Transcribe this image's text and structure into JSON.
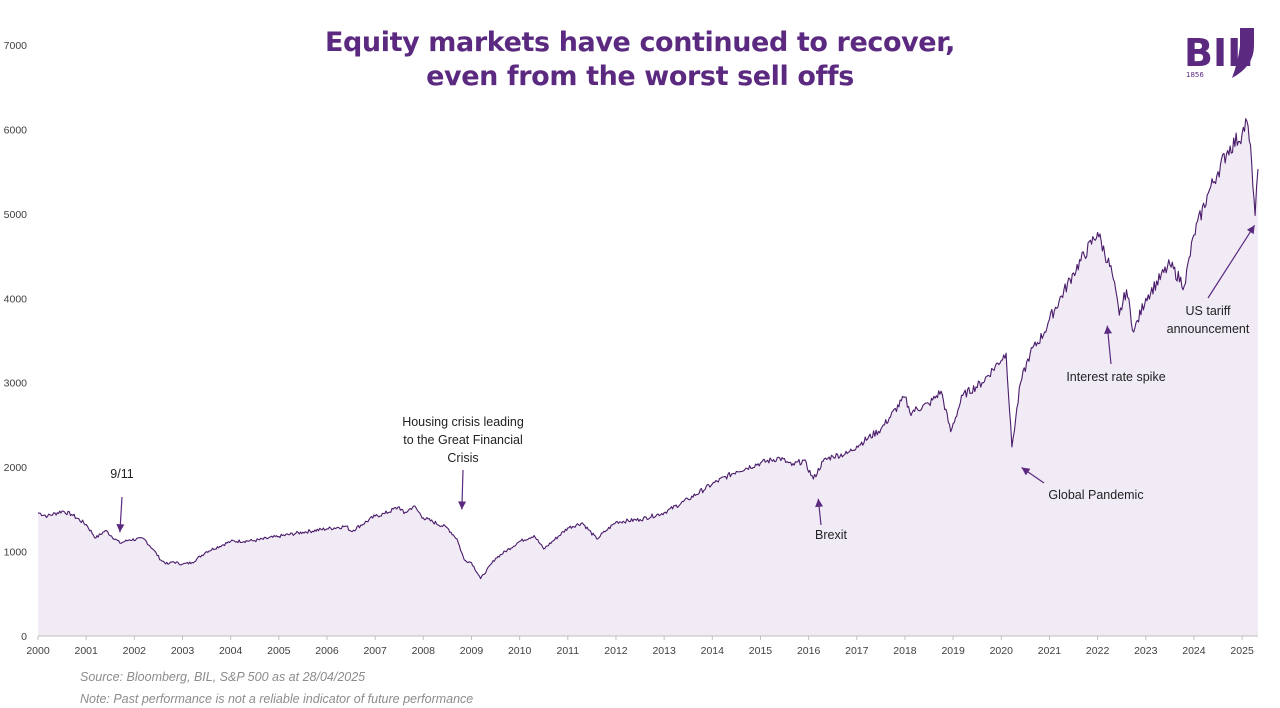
{
  "title": {
    "line1": "Equity markets have continued to recover,",
    "line2": "even from the worst sell offs"
  },
  "logo": {
    "text": "BIL",
    "year": "1856",
    "color": "#5b2a80"
  },
  "footer": {
    "source": "Source: Bloomberg, BIL, S&P 500 as at 28/04/2025",
    "note": "Note: Past performance is not a reliable indicator of future performance"
  },
  "colors": {
    "line": "#4b1d6b",
    "fill": "#f1ebf6",
    "accent": "#5b2a80",
    "axis": "#bfbfbf"
  },
  "chart_data": {
    "type": "area",
    "title": "Equity markets have continued to recover, even from the worst sell offs",
    "xlabel": "",
    "ylabel": "",
    "xlim": [
      2000,
      2025.33
    ],
    "ylim": [
      0,
      7000
    ],
    "grid": false,
    "legend": "none",
    "x_ticks": [
      "2000",
      "2001",
      "2002",
      "2003",
      "2004",
      "2005",
      "2006",
      "2007",
      "2008",
      "2009",
      "2010",
      "2011",
      "2012",
      "2013",
      "2014",
      "2015",
      "2016",
      "2017",
      "2018",
      "2019",
      "2020",
      "2021",
      "2022",
      "2023",
      "2024",
      "2025"
    ],
    "y_ticks": [
      0,
      1000,
      2000,
      3000,
      4000,
      5000,
      6000,
      7000
    ],
    "series": [
      {
        "x": [
          2000.0,
          2000.2,
          2000.5,
          2000.7,
          2001.0,
          2001.2,
          2001.4,
          2001.7,
          2001.9,
          2002.2,
          2002.4,
          2002.55,
          2002.7,
          2002.8,
          2003.0,
          2003.2,
          2003.5,
          2004.0,
          2004.5,
          2005.0,
          2005.5,
          2006.0,
          2006.4,
          2006.5,
          2007.0,
          2007.2,
          2007.5,
          2007.6,
          2007.8,
          2008.0,
          2008.5,
          2008.7,
          2008.85,
          2009.0,
          2009.19,
          2009.5,
          2010.0,
          2010.3,
          2010.5,
          2011.0,
          2011.3,
          2011.6,
          2011.8,
          2012.0,
          2012.5,
          2013.0,
          2013.5,
          2014.0,
          2014.5,
          2015.0,
          2015.4,
          2015.65,
          2015.9,
          2016.1,
          2016.3,
          2016.5,
          2016.8,
          2017.0,
          2017.5,
          2018.0,
          2018.1,
          2018.5,
          2018.75,
          2018.95,
          2019.2,
          2019.6,
          2020.1,
          2020.22,
          2020.4,
          2020.6,
          2020.9,
          2021.0,
          2021.5,
          2022.0,
          2022.3,
          2022.45,
          2022.6,
          2022.75,
          2023.0,
          2023.5,
          2023.8,
          2024.0,
          2024.3,
          2024.5,
          2024.7,
          2025.0,
          2025.1,
          2025.2,
          2025.27,
          2025.33
        ],
        "values": [
          1460,
          1420,
          1480,
          1440,
          1320,
          1160,
          1250,
          1100,
          1140,
          1150,
          1020,
          900,
          850,
          880,
          850,
          870,
          1000,
          1120,
          1130,
          1180,
          1230,
          1270,
          1300,
          1240,
          1420,
          1450,
          1530,
          1450,
          1540,
          1400,
          1280,
          1150,
          900,
          870,
          680,
          920,
          1120,
          1190,
          1030,
          1280,
          1340,
          1150,
          1250,
          1350,
          1380,
          1460,
          1620,
          1800,
          1950,
          2050,
          2110,
          2020,
          2080,
          1860,
          2070,
          2130,
          2160,
          2250,
          2450,
          2830,
          2650,
          2750,
          2900,
          2420,
          2850,
          3000,
          3350,
          2240,
          3000,
          3350,
          3600,
          3750,
          4300,
          4780,
          4300,
          3800,
          4100,
          3600,
          4000,
          4400,
          4150,
          4750,
          5250,
          5500,
          5750,
          5950,
          6100,
          5600,
          4980,
          5530
        ]
      }
    ],
    "annotations": [
      {
        "text": "9/11",
        "x": 2001.7,
        "y": 1110
      },
      {
        "text": "Housing crisis leading to the Great Financial Crisis",
        "lines": [
          "Housing crisis leading",
          "to the Great Financial",
          "Crisis"
        ],
        "x": 2008.8,
        "y": 1380
      },
      {
        "text": "Brexit",
        "x": 2016.2,
        "y": 1720
      },
      {
        "text": "Global Pandemic",
        "x": 2020.42,
        "y": 2090
      },
      {
        "text": "Interest rate spike",
        "x": 2022.2,
        "y": 3770
      },
      {
        "text": "US tariff announcement",
        "lines": [
          "US tariff",
          "announcement"
        ],
        "x": 2025.26,
        "y": 4960
      }
    ]
  }
}
